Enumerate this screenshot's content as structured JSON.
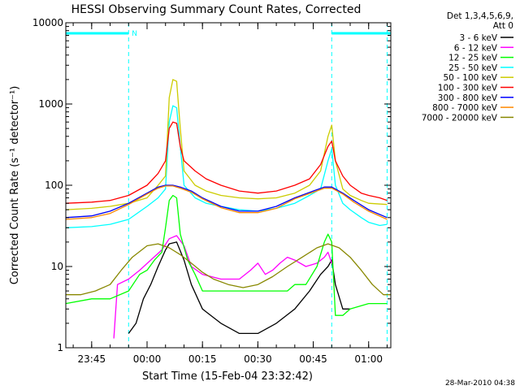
{
  "chart_data": {
    "type": "line",
    "title": "HESSI Observing Summary Count Rates, Corrected",
    "xlabel": "Start Time (15-Feb-04 23:32:42)",
    "ylabel": "Corrected Count Rate (s⁻¹ detector⁻¹)",
    "ylog": true,
    "ylim": [
      1,
      10000
    ],
    "xlim": [
      "23:38",
      "01:06"
    ],
    "x_ticks": [
      "23:45",
      "00:00",
      "00:15",
      "00:30",
      "00:45",
      "01:00"
    ],
    "y_ticks": [
      "1",
      "10",
      "100",
      "1000",
      "10000"
    ],
    "footer_date": "28-Mar-2010 04:38",
    "legend": {
      "header": [
        "Det 1,3,4,5,6,9,",
        "Att 0"
      ],
      "position": "right"
    },
    "flags": [
      {
        "label": "N",
        "from": "23:38",
        "to": "23:55",
        "color": "#00ffff"
      },
      {
        "from": "00:50",
        "to": "01:06",
        "color": "#00ffff"
      }
    ],
    "boundaries": [
      "23:38",
      "23:55",
      "00:50",
      "01:05"
    ],
    "series": [
      {
        "name": "3 - 6 keV",
        "color": "#000000",
        "points": [
          [
            "23:55",
            1.5
          ],
          [
            "23:57",
            2
          ],
          [
            "23:59",
            4
          ],
          [
            "00:01",
            6
          ],
          [
            "00:03",
            10
          ],
          [
            "00:05",
            16
          ],
          [
            "00:06",
            19
          ],
          [
            "00:08",
            20
          ],
          [
            "00:10",
            12
          ],
          [
            "00:12",
            6
          ],
          [
            "00:15",
            3
          ],
          [
            "00:20",
            2
          ],
          [
            "00:25",
            1.5
          ],
          [
            "00:30",
            1.5
          ],
          [
            "00:35",
            2
          ],
          [
            "00:40",
            3
          ],
          [
            "00:44",
            5
          ],
          [
            "00:47",
            8
          ],
          [
            "00:49",
            10
          ],
          [
            "00:50",
            12
          ],
          [
            "00:51",
            6
          ],
          [
            "00:53",
            3
          ],
          [
            "00:55",
            3
          ]
        ]
      },
      {
        "name": "6 - 12 keV",
        "color": "#ff00ff",
        "points": [
          [
            "23:51",
            1.3
          ],
          [
            "23:52",
            6
          ],
          [
            "23:55",
            7
          ],
          [
            "23:58",
            9
          ],
          [
            "00:01",
            12
          ],
          [
            "00:04",
            16
          ],
          [
            "00:06",
            22
          ],
          [
            "00:08",
            24
          ],
          [
            "00:10",
            18
          ],
          [
            "00:12",
            10
          ],
          [
            "00:15",
            8
          ],
          [
            "00:20",
            7
          ],
          [
            "00:25",
            7
          ],
          [
            "00:28",
            9
          ],
          [
            "00:30",
            11
          ],
          [
            "00:32",
            8
          ],
          [
            "00:34",
            9
          ],
          [
            "00:36",
            11
          ],
          [
            "00:38",
            13
          ],
          [
            "00:40",
            12
          ],
          [
            "00:43",
            10
          ],
          [
            "00:46",
            11
          ],
          [
            "00:48",
            13
          ],
          [
            "00:49",
            15
          ],
          [
            "00:50",
            11
          ]
        ]
      },
      {
        "name": "12 - 25 keV",
        "color": "#00ff00",
        "points": [
          [
            "23:38",
            3.5
          ],
          [
            "23:45",
            4
          ],
          [
            "23:50",
            4
          ],
          [
            "23:55",
            5
          ],
          [
            "23:58",
            8
          ],
          [
            "00:00",
            9
          ],
          [
            "00:02",
            12
          ],
          [
            "00:04",
            15
          ],
          [
            "00:05",
            30
          ],
          [
            "00:06",
            65
          ],
          [
            "00:07",
            75
          ],
          [
            "00:08",
            70
          ],
          [
            "00:09",
            25
          ],
          [
            "00:11",
            12
          ],
          [
            "00:13",
            8
          ],
          [
            "00:15",
            5
          ],
          [
            "00:20",
            5
          ],
          [
            "00:25",
            5
          ],
          [
            "00:30",
            5
          ],
          [
            "00:35",
            5
          ],
          [
            "00:38",
            5
          ],
          [
            "00:40",
            6
          ],
          [
            "00:43",
            6
          ],
          [
            "00:46",
            10
          ],
          [
            "00:48",
            20
          ],
          [
            "00:49",
            25
          ],
          [
            "00:50",
            20
          ],
          [
            "00:51",
            2.5
          ],
          [
            "00:53",
            2.5
          ],
          [
            "00:55",
            3
          ],
          [
            "01:00",
            3.5
          ],
          [
            "01:05",
            3.5
          ]
        ]
      },
      {
        "name": "25 - 50 keV",
        "color": "#00ffff",
        "points": [
          [
            "23:38",
            30
          ],
          [
            "23:45",
            31
          ],
          [
            "23:50",
            33
          ],
          [
            "23:55",
            38
          ],
          [
            "00:00",
            55
          ],
          [
            "00:03",
            70
          ],
          [
            "00:05",
            90
          ],
          [
            "00:06",
            600
          ],
          [
            "00:07",
            950
          ],
          [
            "00:08",
            900
          ],
          [
            "00:09",
            300
          ],
          [
            "00:10",
            100
          ],
          [
            "00:13",
            70
          ],
          [
            "00:16",
            60
          ],
          [
            "00:20",
            55
          ],
          [
            "00:25",
            50
          ],
          [
            "00:30",
            48
          ],
          [
            "00:35",
            52
          ],
          [
            "00:40",
            60
          ],
          [
            "00:44",
            75
          ],
          [
            "00:47",
            90
          ],
          [
            "00:49",
            200
          ],
          [
            "00:50",
            280
          ],
          [
            "00:51",
            100
          ],
          [
            "00:53",
            60
          ],
          [
            "00:55",
            50
          ],
          [
            "00:58",
            40
          ],
          [
            "01:00",
            35
          ],
          [
            "01:03",
            32
          ],
          [
            "01:05",
            33
          ]
        ]
      },
      {
        "name": "50 - 100 keV",
        "color": "#cccc00",
        "points": [
          [
            "23:38",
            50
          ],
          [
            "23:45",
            52
          ],
          [
            "23:50",
            55
          ],
          [
            "23:55",
            60
          ],
          [
            "00:00",
            70
          ],
          [
            "00:03",
            100
          ],
          [
            "00:05",
            130
          ],
          [
            "00:06",
            1200
          ],
          [
            "00:07",
            2000
          ],
          [
            "00:08",
            1900
          ],
          [
            "00:09",
            500
          ],
          [
            "00:10",
            150
          ],
          [
            "00:13",
            100
          ],
          [
            "00:16",
            85
          ],
          [
            "00:20",
            75
          ],
          [
            "00:25",
            70
          ],
          [
            "00:30",
            68
          ],
          [
            "00:35",
            70
          ],
          [
            "00:40",
            80
          ],
          [
            "00:44",
            100
          ],
          [
            "00:47",
            150
          ],
          [
            "00:49",
            400
          ],
          [
            "00:50",
            550
          ],
          [
            "00:51",
            200
          ],
          [
            "00:53",
            90
          ],
          [
            "00:55",
            75
          ],
          [
            "00:58",
            65
          ],
          [
            "01:00",
            60
          ],
          [
            "01:05",
            58
          ]
        ]
      },
      {
        "name": "100 - 300 keV",
        "color": "#ff0000",
        "points": [
          [
            "23:38",
            60
          ],
          [
            "23:45",
            62
          ],
          [
            "23:50",
            65
          ],
          [
            "23:55",
            75
          ],
          [
            "00:00",
            100
          ],
          [
            "00:03",
            140
          ],
          [
            "00:05",
            200
          ],
          [
            "00:06",
            500
          ],
          [
            "00:07",
            600
          ],
          [
            "00:08",
            580
          ],
          [
            "00:09",
            300
          ],
          [
            "00:10",
            200
          ],
          [
            "00:13",
            150
          ],
          [
            "00:16",
            120
          ],
          [
            "00:20",
            100
          ],
          [
            "00:25",
            85
          ],
          [
            "00:30",
            80
          ],
          [
            "00:35",
            85
          ],
          [
            "00:40",
            100
          ],
          [
            "00:44",
            120
          ],
          [
            "00:47",
            180
          ],
          [
            "00:49",
            300
          ],
          [
            "00:50",
            350
          ],
          [
            "00:51",
            200
          ],
          [
            "00:53",
            130
          ],
          [
            "00:55",
            100
          ],
          [
            "00:58",
            80
          ],
          [
            "01:00",
            75
          ],
          [
            "01:03",
            70
          ],
          [
            "01:05",
            65
          ]
        ]
      },
      {
        "name": "300 - 800 keV",
        "color": "#0000ff",
        "points": [
          [
            "23:38",
            40
          ],
          [
            "23:45",
            42
          ],
          [
            "23:50",
            48
          ],
          [
            "23:55",
            60
          ],
          [
            "00:00",
            80
          ],
          [
            "00:03",
            95
          ],
          [
            "00:05",
            100
          ],
          [
            "00:07",
            100
          ],
          [
            "00:09",
            95
          ],
          [
            "00:12",
            85
          ],
          [
            "00:15",
            70
          ],
          [
            "00:20",
            55
          ],
          [
            "00:25",
            48
          ],
          [
            "00:30",
            48
          ],
          [
            "00:35",
            55
          ],
          [
            "00:40",
            70
          ],
          [
            "00:45",
            85
          ],
          [
            "00:48",
            95
          ],
          [
            "00:50",
            95
          ],
          [
            "00:53",
            80
          ],
          [
            "00:56",
            65
          ],
          [
            "01:00",
            50
          ],
          [
            "01:05",
            40
          ]
        ]
      },
      {
        "name": "800 - 7000 keV",
        "color": "#ff8800",
        "points": [
          [
            "23:38",
            38
          ],
          [
            "23:45",
            40
          ],
          [
            "23:50",
            45
          ],
          [
            "23:55",
            58
          ],
          [
            "00:00",
            78
          ],
          [
            "00:03",
            92
          ],
          [
            "00:05",
            98
          ],
          [
            "00:07",
            98
          ],
          [
            "00:09",
            92
          ],
          [
            "00:12",
            82
          ],
          [
            "00:15",
            68
          ],
          [
            "00:20",
            53
          ],
          [
            "00:25",
            46
          ],
          [
            "00:30",
            46
          ],
          [
            "00:35",
            52
          ],
          [
            "00:40",
            68
          ],
          [
            "00:45",
            82
          ],
          [
            "00:48",
            92
          ],
          [
            "00:50",
            92
          ],
          [
            "00:53",
            78
          ],
          [
            "00:56",
            62
          ],
          [
            "01:00",
            48
          ],
          [
            "01:05",
            38
          ]
        ]
      },
      {
        "name": "7000 - 20000 keV",
        "color": "#888800",
        "points": [
          [
            "23:38",
            4.5
          ],
          [
            "23:42",
            4.5
          ],
          [
            "23:46",
            5
          ],
          [
            "23:50",
            6
          ],
          [
            "23:53",
            9
          ],
          [
            "23:56",
            13
          ],
          [
            "00:00",
            18
          ],
          [
            "00:03",
            19
          ],
          [
            "00:06",
            17
          ],
          [
            "00:09",
            14
          ],
          [
            "00:12",
            11
          ],
          [
            "00:15",
            8.5
          ],
          [
            "00:18",
            7
          ],
          [
            "00:22",
            6
          ],
          [
            "00:26",
            5.5
          ],
          [
            "00:30",
            6
          ],
          [
            "00:34",
            7.5
          ],
          [
            "00:38",
            10
          ],
          [
            "00:42",
            13
          ],
          [
            "00:46",
            17
          ],
          [
            "00:49",
            19
          ],
          [
            "00:52",
            17
          ],
          [
            "00:55",
            13
          ],
          [
            "00:58",
            9
          ],
          [
            "01:01",
            6
          ],
          [
            "01:04",
            4.5
          ],
          [
            "01:06",
            4.5
          ]
        ]
      }
    ]
  }
}
